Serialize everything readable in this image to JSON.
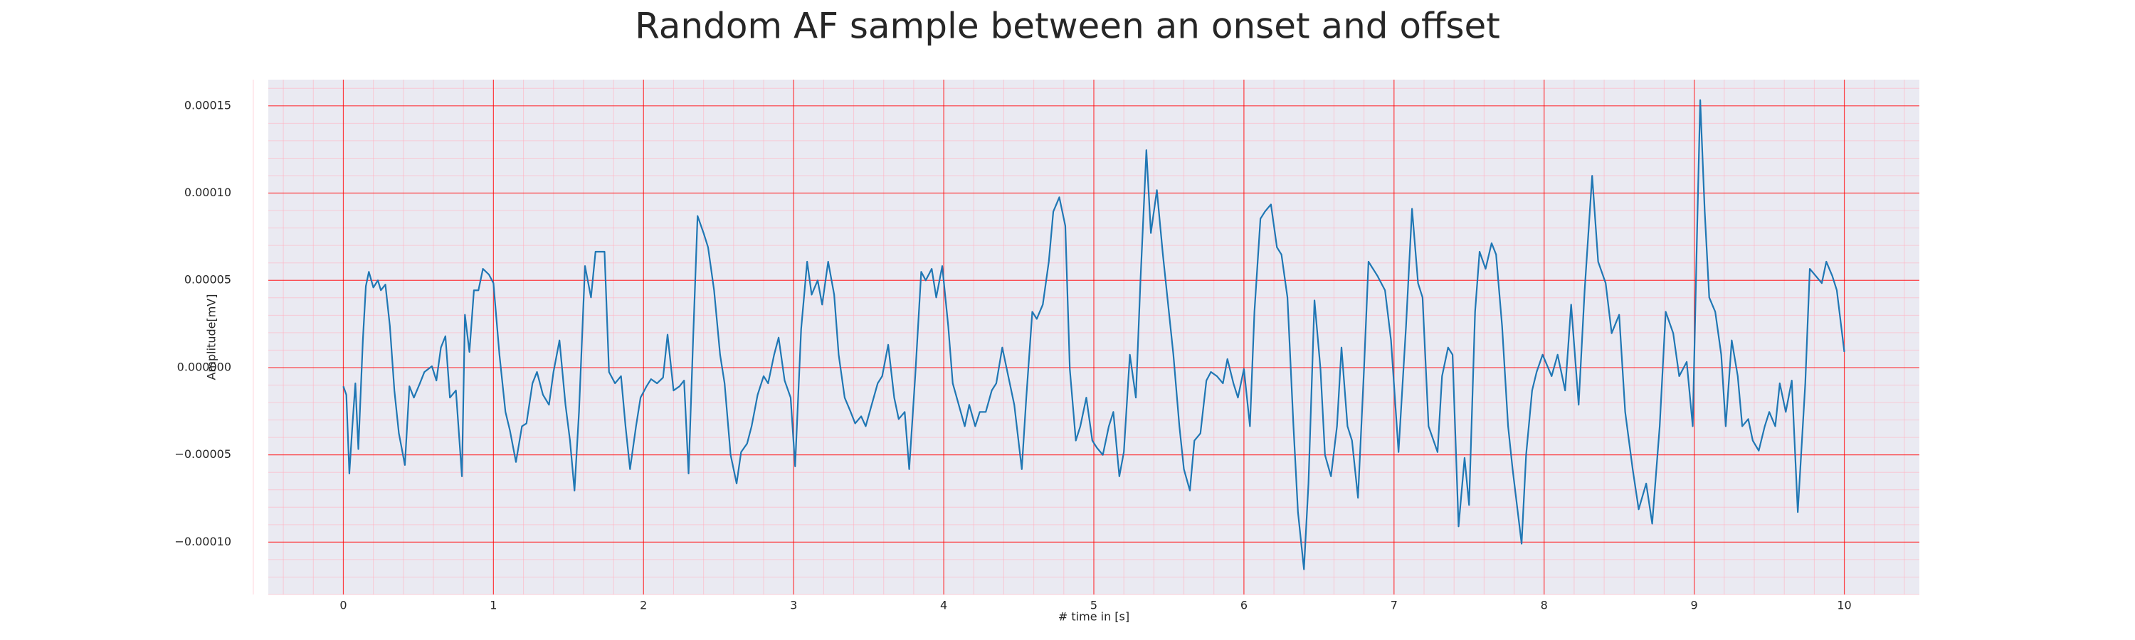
{
  "chart_data": {
    "type": "line",
    "title": "Random AF sample between an onset and offset",
    "xlabel": "# time in [s]",
    "ylabel": "Amplitude[mV]",
    "xlim": [
      -0.5,
      10.5
    ],
    "ylim": [
      -0.00013,
      0.000165
    ],
    "xticks": [
      0,
      1,
      2,
      3,
      4,
      5,
      6,
      7,
      8,
      9,
      10
    ],
    "yticks": [
      {
        "value": -0.0001,
        "label": "−0.00010"
      },
      {
        "value": -5e-05,
        "label": "−0.00005"
      },
      {
        "value": 0,
        "label": "0.000000"
      },
      {
        "value": 5e-05,
        "label": "0.00005"
      },
      {
        "value": 0.0001,
        "label": "0.00010"
      },
      {
        "value": 0.00015,
        "label": "0.00015"
      }
    ],
    "grid": true,
    "minor_grid": true,
    "background": "#eaeaf2",
    "grid_color": "#ff0000",
    "minor_grid_color": "#ffb3c1",
    "x": [
      0.0,
      0.02,
      0.04,
      0.06,
      0.08,
      0.1,
      0.13,
      0.15,
      0.17,
      0.2,
      0.23,
      0.25,
      0.28,
      0.31,
      0.34,
      0.37,
      0.41,
      0.44,
      0.47,
      0.51,
      0.54,
      0.59,
      0.62,
      0.65,
      0.68,
      0.71,
      0.75,
      0.79,
      0.81,
      0.84,
      0.87,
      0.9,
      0.93,
      0.97,
      1.0,
      1.04,
      1.08,
      1.11,
      1.15,
      1.19,
      1.22,
      1.26,
      1.29,
      1.33,
      1.37,
      1.4,
      1.44,
      1.48,
      1.51,
      1.54,
      1.57,
      1.61,
      1.65,
      1.68,
      1.74,
      1.77,
      1.81,
      1.85,
      1.88,
      1.91,
      1.95,
      1.98,
      2.02,
      2.05,
      2.09,
      2.13,
      2.16,
      2.2,
      2.24,
      2.27,
      2.3,
      2.33,
      2.36,
      2.4,
      2.43,
      2.47,
      2.51,
      2.54,
      2.58,
      2.62,
      2.65,
      2.69,
      2.72,
      2.76,
      2.8,
      2.83,
      2.87,
      2.9,
      2.94,
      2.98,
      3.01,
      3.05,
      3.09,
      3.12,
      3.16,
      3.19,
      3.23,
      3.27,
      3.3,
      3.34,
      3.38,
      3.41,
      3.45,
      3.48,
      3.52,
      3.56,
      3.59,
      3.63,
      3.67,
      3.7,
      3.74,
      3.77,
      3.81,
      3.85,
      3.88,
      3.92,
      3.95,
      3.99,
      4.03,
      4.06,
      4.1,
      4.14,
      4.17,
      4.21,
      4.24,
      4.28,
      4.32,
      4.35,
      4.39,
      4.43,
      4.47,
      4.52,
      4.55,
      4.59,
      4.62,
      4.66,
      4.7,
      4.73,
      4.77,
      4.81,
      4.84,
      4.88,
      4.91,
      4.95,
      4.99,
      5.02,
      5.06,
      5.1,
      5.13,
      5.17,
      5.2,
      5.24,
      5.28,
      5.31,
      5.35,
      5.38,
      5.42,
      5.46,
      5.49,
      5.53,
      5.57,
      5.6,
      5.64,
      5.67,
      5.71,
      5.75,
      5.78,
      5.82,
      5.86,
      5.89,
      5.93,
      5.96,
      6.0,
      6.04,
      6.07,
      6.11,
      6.14,
      6.18,
      6.22,
      6.25,
      6.29,
      6.33,
      6.36,
      6.4,
      6.43,
      6.47,
      6.51,
      6.54,
      6.58,
      6.62,
      6.65,
      6.69,
      6.72,
      6.76,
      6.8,
      6.83,
      6.89,
      6.94,
      6.98,
      7.03,
      7.08,
      7.12,
      7.16,
      7.19,
      7.23,
      7.29,
      7.32,
      7.36,
      7.39,
      7.43,
      7.47,
      7.5,
      7.54,
      7.57,
      7.61,
      7.65,
      7.68,
      7.72,
      7.76,
      7.79,
      7.85,
      7.88,
      7.92,
      7.95,
      7.99,
      8.05,
      8.09,
      8.14,
      8.18,
      8.23,
      8.27,
      8.32,
      8.36,
      8.41,
      8.45,
      8.5,
      8.54,
      8.59,
      8.63,
      8.68,
      8.72,
      8.77,
      8.81,
      8.86,
      8.9,
      8.95,
      8.99,
      9.02,
      9.04,
      9.07,
      9.1,
      9.14,
      9.18,
      9.21,
      9.25,
      9.29,
      9.32,
      9.36,
      9.39,
      9.43,
      9.47,
      9.5,
      9.54,
      9.57,
      9.61,
      9.65,
      9.69,
      9.74,
      9.77,
      9.81,
      9.85,
      9.88,
      9.92,
      9.95,
      10.0
    ],
    "series": [
      {
        "color": "#1f77b4",
        "values": [
          -1.07e-05,
          -1.56e-05,
          -6.07e-05,
          -3.36e-05,
          -9e-06,
          -4.67e-05,
          1.56e-05,
          4.67e-05,
          5.49e-05,
          4.59e-05,
          5e-05,
          4.43e-05,
          4.76e-05,
          2.38e-05,
          -1.31e-05,
          -3.77e-05,
          -5.58e-05,
          -1.07e-05,
          -1.72e-05,
          -9e-06,
          -2.5e-06,
          8e-07,
          -7.4e-06,
          1.15e-05,
          1.8e-05,
          -1.72e-05,
          -1.31e-05,
          -6.23e-05,
          3.03e-05,
          9e-06,
          4.43e-05,
          4.43e-05,
          5.66e-05,
          5.33e-05,
          4.84e-05,
          7.4e-06,
          -2.54e-05,
          -3.61e-05,
          -5.41e-05,
          -3.36e-05,
          -3.2e-05,
          -9e-06,
          -2.5e-06,
          -1.56e-05,
          -2.13e-05,
          -2.5e-06,
          1.56e-05,
          -2.13e-05,
          -4.18e-05,
          -7.05e-05,
          -2.54e-05,
          5.82e-05,
          4.02e-05,
          6.64e-05,
          6.64e-05,
          -2.5e-06,
          -9e-06,
          -4.9e-06,
          -3.36e-05,
          -5.82e-05,
          -3.36e-05,
          -1.72e-05,
          -1.07e-05,
          -6.6e-06,
          -9e-06,
          -5.7e-06,
          1.89e-05,
          -1.31e-05,
          -1.07e-05,
          -7.4e-06,
          -6.07e-05,
          1.56e-05,
          8.69e-05,
          7.71e-05,
          6.89e-05,
          4.43e-05,
          7.4e-06,
          -9e-06,
          -5e-05,
          -6.64e-05,
          -4.84e-05,
          -4.35e-05,
          -3.36e-05,
          -1.56e-05,
          -4.9e-06,
          -9e-06,
          7.4e-06,
          1.72e-05,
          -7.4e-06,
          -1.72e-05,
          -5.66e-05,
          2.21e-05,
          6.07e-05,
          4.18e-05,
          5e-05,
          3.61e-05,
          6.07e-05,
          4.18e-05,
          7.4e-06,
          -1.72e-05,
          -2.54e-05,
          -3.2e-05,
          -2.79e-05,
          -3.36e-05,
          -2.13e-05,
          -9e-06,
          -4.9e-06,
          1.31e-05,
          -1.72e-05,
          -2.95e-05,
          -2.54e-05,
          -5.82e-05,
          -4.9e-06,
          5.49e-05,
          5e-05,
          5.66e-05,
          4.02e-05,
          5.82e-05,
          2.38e-05,
          -9e-06,
          -2.13e-05,
          -3.36e-05,
          -2.13e-05,
          -3.36e-05,
          -2.54e-05,
          -2.54e-05,
          -1.31e-05,
          -9e-06,
          1.15e-05,
          -4.9e-06,
          -2.13e-05,
          -5.82e-05,
          -1.72e-05,
          3.2e-05,
          2.79e-05,
          3.61e-05,
          6.07e-05,
          8.94e-05,
          9.76e-05,
          8.12e-05,
          -8e-07,
          -4.18e-05,
          -3.36e-05,
          -1.72e-05,
          -4.18e-05,
          -4.59e-05,
          -5e-05,
          -3.36e-05,
          -2.54e-05,
          -6.23e-05,
          -4.84e-05,
          7.4e-06,
          -1.72e-05,
          4.84e-05,
          0.0001246,
          7.71e-05,
          0.0001017,
          6.48e-05,
          4.02e-05,
          7.4e-06,
          -3.36e-05,
          -5.82e-05,
          -7.05e-05,
          -4.18e-05,
          -3.77e-05,
          -7.4e-06,
          -2.5e-06,
          -4.9e-06,
          -9e-06,
          4.9e-06,
          -9e-06,
          -1.72e-05,
          -8e-07,
          -3.36e-05,
          3.2e-05,
          8.53e-05,
          8.94e-05,
          9.35e-05,
          6.89e-05,
          6.48e-05,
          4.02e-05,
          -3.36e-05,
          -8.28e-05,
          -0.0001156,
          -6.64e-05,
          3.85e-05,
          -8e-07,
          -5e-05,
          -6.23e-05,
          -3.36e-05,
          1.15e-05,
          -3.36e-05,
          -4.18e-05,
          -7.46e-05,
          -8e-07,
          6.07e-05,
          5.25e-05,
          4.43e-05,
          1.56e-05,
          -4.84e-05,
          2.38e-05,
          9.1e-05,
          4.84e-05,
          4.02e-05,
          -3.36e-05,
          -4.84e-05,
          -4.9e-06,
          1.15e-05,
          7.4e-06,
          -9.1e-05,
          -5.17e-05,
          -7.87e-05,
          3.2e-05,
          6.64e-05,
          5.66e-05,
          7.13e-05,
          6.48e-05,
          2.38e-05,
          -3.36e-05,
          -5.82e-05,
          -0.0001009,
          -5e-05,
          -1.31e-05,
          -2.5e-06,
          7.4e-06,
          -4.9e-06,
          7.4e-06,
          -1.31e-05,
          3.61e-05,
          -2.13e-05,
          4.43e-05,
          0.0001099,
          6.07e-05,
          4.84e-05,
          1.97e-05,
          3.03e-05,
          -2.54e-05,
          -5.82e-05,
          -8.12e-05,
          -6.64e-05,
          -8.94e-05,
          -3.36e-05,
          3.2e-05,
          1.97e-05,
          -4.9e-06,
          3.3e-06,
          -3.36e-05,
          8.12e-05,
          0.0001533,
          8.94e-05,
          4.02e-05,
          3.2e-05,
          7.4e-06,
          -3.36e-05,
          1.56e-05,
          -4.9e-06,
          -3.36e-05,
          -2.95e-05,
          -4.18e-05,
          -4.76e-05,
          -3.36e-05,
          -2.54e-05,
          -3.36e-05,
          -9e-06,
          -2.54e-05,
          -7.4e-06,
          -8.28e-05,
          -9e-06,
          5.66e-05,
          5.25e-05,
          4.84e-05,
          6.07e-05,
          5.25e-05,
          4.43e-05,
          9e-06
        ]
      }
    ]
  }
}
